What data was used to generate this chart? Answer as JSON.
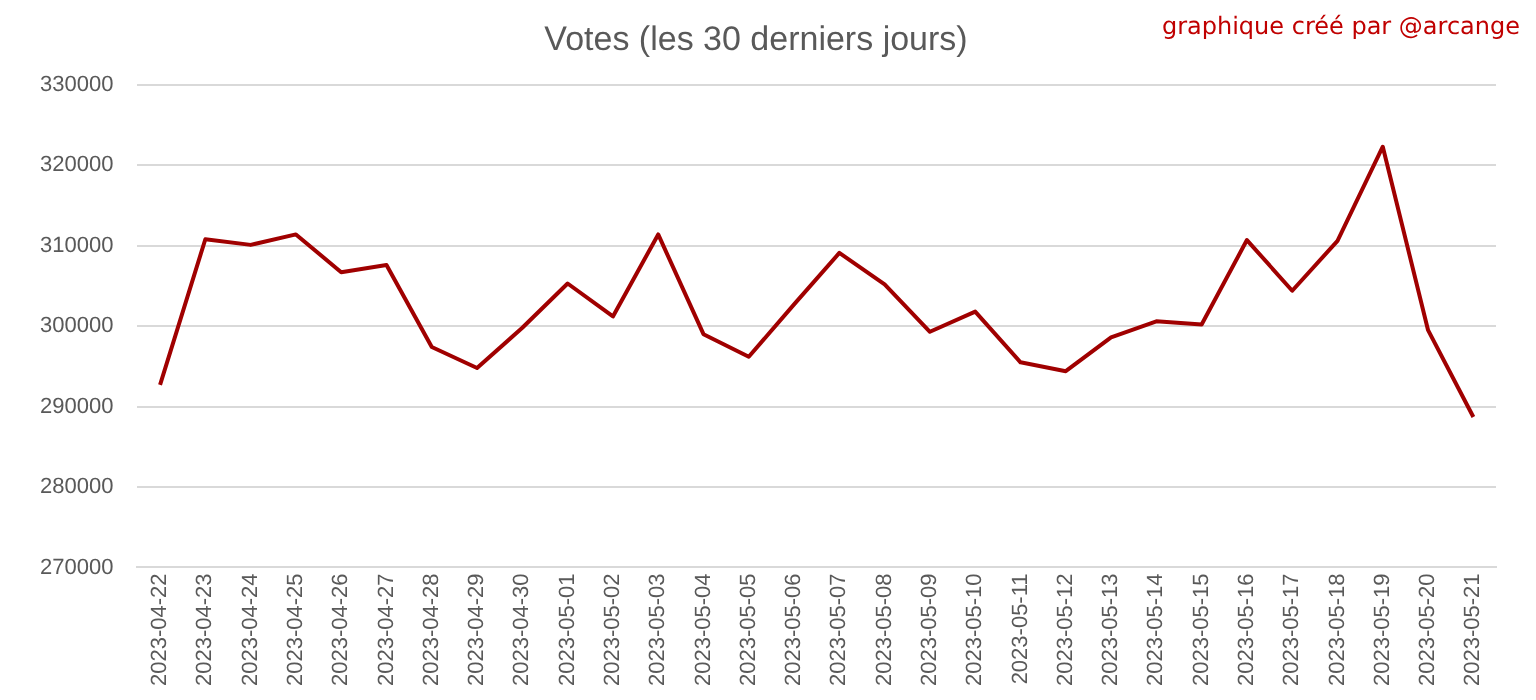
{
  "chart_data": {
    "type": "line",
    "title": "Votes (les 30 derniers jours)",
    "annotations": [
      "graphique créé par @arcange"
    ],
    "categories": [
      "2023-04-22",
      "2023-04-23",
      "2023-04-24",
      "2023-04-25",
      "2023-04-26",
      "2023-04-27",
      "2023-04-28",
      "2023-04-29",
      "2023-04-30",
      "2023-05-01",
      "2023-05-02",
      "2023-05-03",
      "2023-05-04",
      "2023-05-05",
      "2023-05-06",
      "2023-05-07",
      "2023-05-08",
      "2023-05-09",
      "2023-05-10",
      "2023-05-11",
      "2023-05-12",
      "2023-05-13",
      "2023-05-14",
      "2023-05-15",
      "2023-05-16",
      "2023-05-17",
      "2023-05-18",
      "2023-05-19",
      "2023-05-20",
      "2023-05-21"
    ],
    "series": [
      {
        "color": "#a00000",
        "values": [
          292700,
          310800,
          310100,
          311400,
          306700,
          307600,
          297400,
          294800,
          299800,
          305300,
          301200,
          311400,
          299000,
          296200,
          302700,
          309100,
          305200,
          299300,
          301800,
          295500,
          294400,
          298600,
          300600,
          300200,
          310700,
          304400,
          310600,
          322300,
          299500,
          288700
        ]
      }
    ],
    "ylim": [
      270000,
      330000
    ],
    "yticks": [
      270000,
      280000,
      290000,
      300000,
      310000,
      320000,
      330000
    ],
    "grid": "y",
    "legend": false,
    "marker": "none",
    "line_style": "solid"
  }
}
